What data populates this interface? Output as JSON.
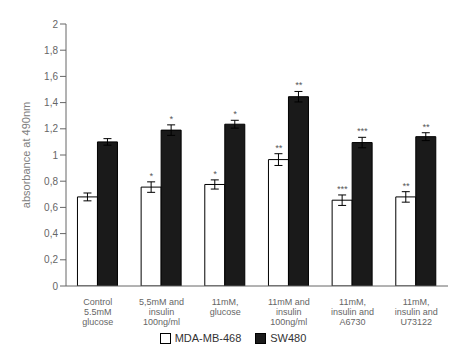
{
  "chart_data": {
    "type": "bar",
    "categories": [
      "Control\n5.5mM\nglucose",
      "5,5mM and\ninsulin\n100ng/ml",
      "11mM,\nglucose",
      "11mM and\ninsulin\n100ng/ml",
      "11mM,\ninsulin and\nA6730",
      "11mM,\ninsulin and\nU73122"
    ],
    "series": [
      {
        "name": "MDA-MB-468",
        "color": "white",
        "values": [
          0.68,
          0.755,
          0.775,
          0.965,
          0.655,
          0.68
        ],
        "errors": [
          0.03,
          0.04,
          0.035,
          0.045,
          0.04,
          0.04
        ],
        "stars": [
          null,
          "*",
          "*",
          "**",
          "***",
          "**"
        ]
      },
      {
        "name": "SW480",
        "color": "#1a1a1a",
        "values": [
          1.1,
          1.19,
          1.235,
          1.445,
          1.095,
          1.14
        ],
        "errors": [
          0.025,
          0.04,
          0.03,
          0.04,
          0.04,
          0.03
        ],
        "stars": [
          null,
          "*",
          "*",
          "**",
          "***",
          "**"
        ]
      }
    ],
    "ylabel": "absorbance at 490nm",
    "ylim": [
      0,
      2.0
    ],
    "yticks": [
      0,
      {
        "value": 0.2,
        "label": "0,2"
      },
      {
        "value": 0.4,
        "label": "0,4"
      },
      {
        "value": 0.6,
        "label": "0,6"
      },
      {
        "value": 0.8,
        "label": "0,8"
      },
      1,
      {
        "value": 1.2,
        "label": "1,2"
      },
      {
        "value": 1.4,
        "label": "1,4"
      },
      {
        "value": 1.6,
        "label": "1,6"
      },
      {
        "value": 1.8,
        "label": "1,8"
      },
      2
    ],
    "grid": false,
    "legend": "bottom"
  }
}
